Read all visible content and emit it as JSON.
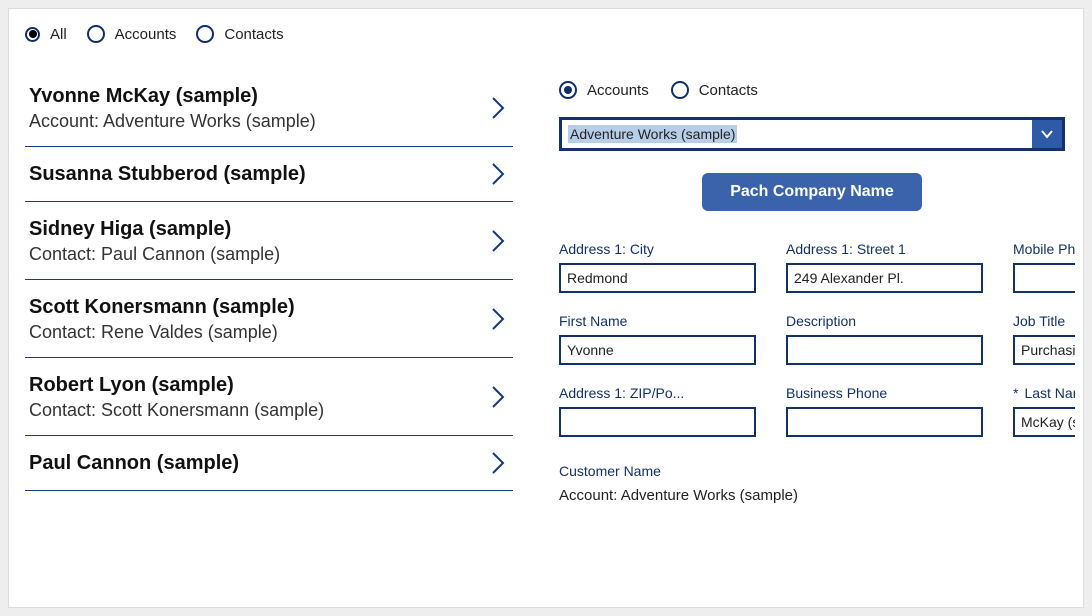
{
  "colors": {
    "accent": "#12316d",
    "button_bg": "#3a63ac",
    "select_btn_bg": "#2f5aa8",
    "highlight_bg": "#b7cee8",
    "divider": "#1a3c80",
    "page_bg": "#eeeeee",
    "card_bg": "#ffffff"
  },
  "top_filter": {
    "options": [
      {
        "label": "All",
        "selected": true
      },
      {
        "label": "Accounts",
        "selected": false
      },
      {
        "label": "Contacts",
        "selected": false
      }
    ]
  },
  "list": [
    {
      "title": "Yvonne McKay (sample)",
      "subtitle": "Account: Adventure Works (sample)"
    },
    {
      "title": "Susanna Stubberod (sample)",
      "subtitle": ""
    },
    {
      "title": "Sidney Higa (sample)",
      "subtitle": "Contact: Paul Cannon (sample)"
    },
    {
      "title": "Scott Konersmann (sample)",
      "subtitle": "Contact: Rene Valdes (sample)"
    },
    {
      "title": "Robert Lyon (sample)",
      "subtitle": "Contact: Scott Konersmann (sample)"
    },
    {
      "title": "Paul Cannon (sample)",
      "subtitle": ""
    }
  ],
  "detail_filter": {
    "options": [
      {
        "label": "Accounts",
        "selected": true
      },
      {
        "label": "Contacts",
        "selected": false
      }
    ]
  },
  "select": {
    "value": "Adventure Works (sample)"
  },
  "action_button": {
    "label": "Pach Company Name"
  },
  "fields": {
    "address_city": {
      "label": "Address 1: City",
      "value": "Redmond",
      "required": false
    },
    "address_street": {
      "label": "Address 1: Street 1",
      "value": "249 Alexander Pl.",
      "required": false
    },
    "mobile_phone": {
      "label": "Mobile Phone",
      "value": "",
      "required": false
    },
    "first_name": {
      "label": "First Name",
      "value": "Yvonne",
      "required": false
    },
    "description": {
      "label": "Description",
      "value": "",
      "required": false
    },
    "job_title": {
      "label": "Job Title",
      "value": "Purchasing Manager",
      "required": false
    },
    "address_zip": {
      "label": "Address 1: ZIP/Po...",
      "value": "",
      "required": false
    },
    "business_phone": {
      "label": "Business Phone",
      "value": "",
      "required": false
    },
    "last_name": {
      "label": "Last Name",
      "value": "McKay (sample)",
      "required": true
    }
  },
  "customer": {
    "label": "Customer Name",
    "value": "Account: Adventure Works (sample)"
  }
}
